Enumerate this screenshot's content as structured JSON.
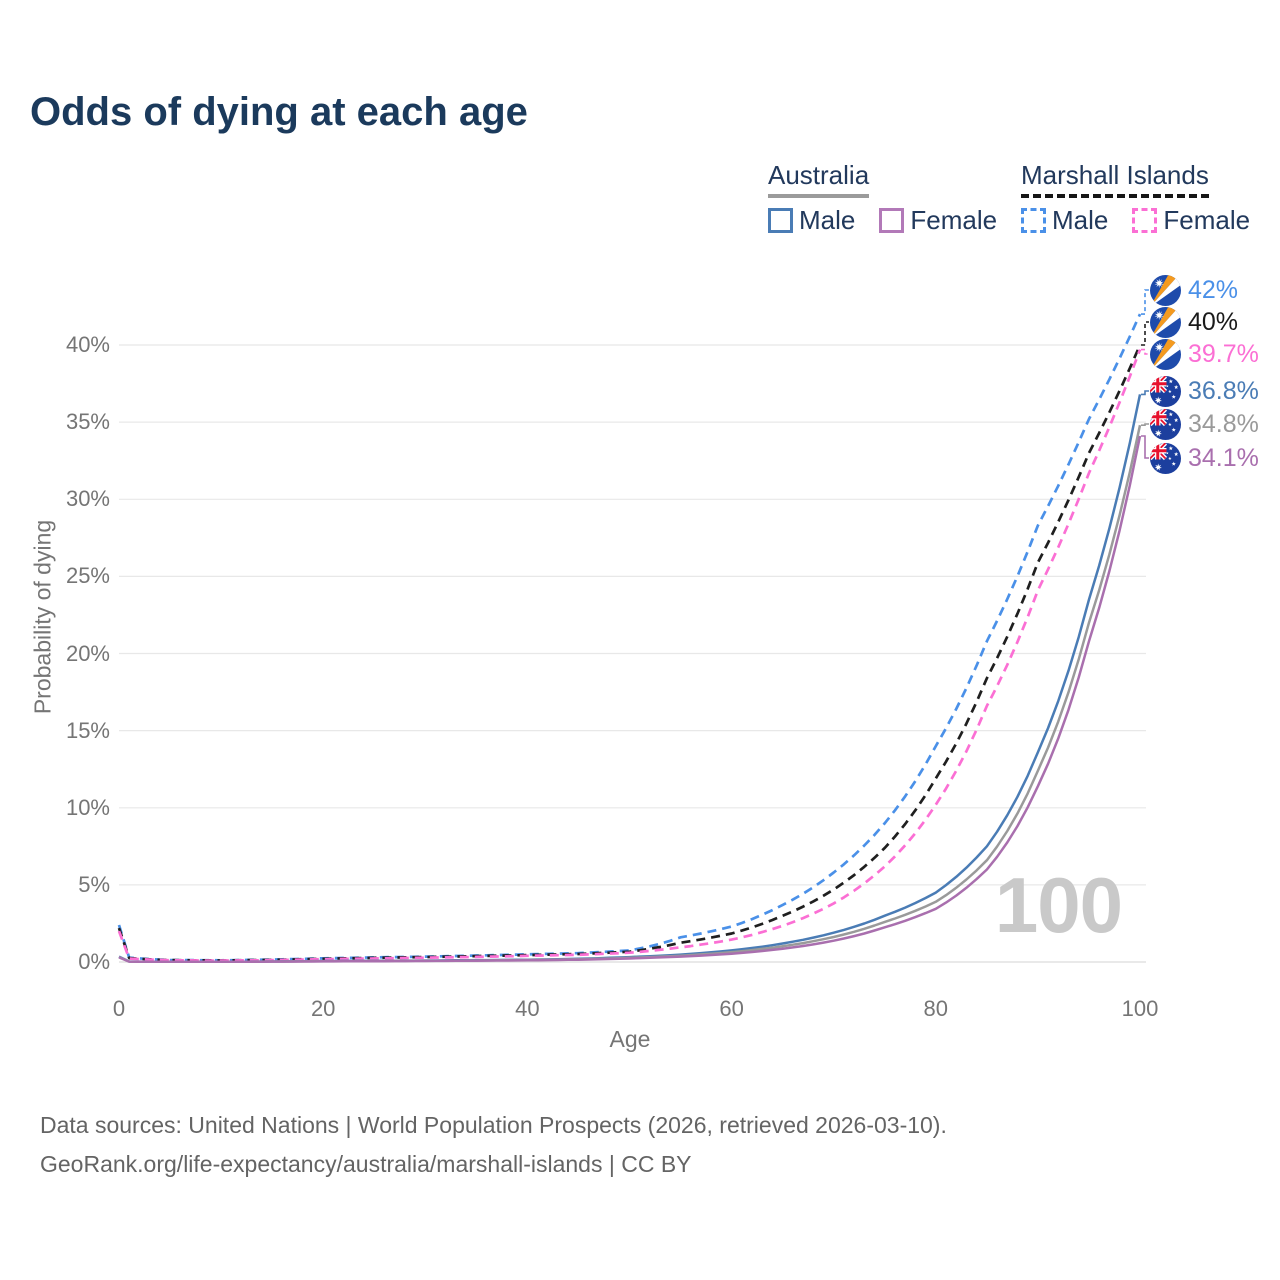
{
  "title": "Odds of dying at each age",
  "watermark": "100",
  "legend": {
    "groups": [
      {
        "label": "Australia",
        "line_style": "solid",
        "underline_color": "#9b9b9b",
        "items": [
          {
            "label": "Male",
            "color": "#4a7cb5",
            "dashed": false
          },
          {
            "label": "Female",
            "color": "#b279b8",
            "dashed": false
          }
        ]
      },
      {
        "label": "Marshall Islands",
        "line_style": "dashed",
        "underline_color": "#161616",
        "items": [
          {
            "label": "Male",
            "color": "#4a90e8",
            "dashed": true
          },
          {
            "label": "Female",
            "color": "#fb6fd4",
            "dashed": true
          }
        ]
      }
    ]
  },
  "footer": {
    "line1": "Data sources: United Nations | World Population Prospects (2026, retrieved 2026-03-10).",
    "line2": "GeoRank.org/life-expectancy/australia/marshall-islands | CC BY"
  },
  "chart_data": {
    "type": "line",
    "title": "Odds of dying at each age",
    "xlabel": "Age",
    "ylabel": "Probability of dying",
    "xlim": [
      0,
      100
    ],
    "ylim_percent": [
      0,
      43
    ],
    "x_ticks": [
      "0",
      "20",
      "40",
      "60",
      "80",
      "100"
    ],
    "y_ticks": [
      "0%",
      "5%",
      "10%",
      "15%",
      "20%",
      "25%",
      "30%",
      "35%",
      "40%"
    ],
    "y_tick_values": [
      0,
      5,
      10,
      15,
      20,
      25,
      30,
      35,
      40
    ],
    "grid": "horizontal",
    "legend_position": "top-right",
    "x": [
      0,
      1,
      5,
      10,
      15,
      20,
      25,
      30,
      35,
      40,
      45,
      50,
      55,
      60,
      65,
      70,
      75,
      80,
      85,
      90,
      95,
      100
    ],
    "series": [
      {
        "name": "Marshall Islands Male",
        "country": "Marshall Islands",
        "sex": "Male",
        "color": "#4a90e8",
        "dashed": true,
        "flag": "marshall-islands",
        "end_label": "42%",
        "values_percent": [
          2.4,
          0.28,
          0.13,
          0.11,
          0.16,
          0.24,
          0.3,
          0.35,
          0.42,
          0.5,
          0.58,
          0.75,
          1.6,
          2.3,
          3.7,
          5.8,
          9.0,
          14.0,
          20.8,
          28.3,
          35.2,
          42.0
        ]
      },
      {
        "name": "Marshall Islands Both Sexes",
        "country": "Marshall Islands",
        "sex": "Both",
        "color": "#1f1f1f",
        "dashed": true,
        "flag": "marshall-islands",
        "end_label": "40%",
        "values_percent": [
          2.2,
          0.25,
          0.12,
          0.1,
          0.14,
          0.21,
          0.27,
          0.32,
          0.38,
          0.45,
          0.52,
          0.67,
          1.25,
          1.85,
          3.0,
          4.7,
          7.4,
          11.9,
          18.4,
          25.9,
          33.0,
          40.0
        ]
      },
      {
        "name": "Marshall Islands Female",
        "country": "Marshall Islands",
        "sex": "Female",
        "color": "#fb6fd4",
        "dashed": true,
        "flag": "marshall-islands",
        "end_label": "39.7%",
        "values_percent": [
          2.0,
          0.22,
          0.11,
          0.09,
          0.12,
          0.18,
          0.23,
          0.28,
          0.33,
          0.4,
          0.47,
          0.6,
          0.95,
          1.45,
          2.35,
          3.8,
          6.2,
          10.2,
          16.6,
          24.1,
          31.7,
          39.7
        ]
      },
      {
        "name": "Australia Male",
        "country": "Australia",
        "sex": "Male",
        "color": "#4a7cb5",
        "dashed": false,
        "flag": "australia",
        "end_label": "36.8%",
        "values_percent": [
          0.35,
          0.03,
          0.012,
          0.012,
          0.035,
          0.065,
          0.08,
          0.095,
          0.12,
          0.15,
          0.21,
          0.32,
          0.48,
          0.75,
          1.2,
          1.9,
          3.0,
          4.5,
          7.5,
          13.6,
          23.5,
          36.8
        ]
      },
      {
        "name": "Australia Both Sexes",
        "country": "Australia",
        "sex": "Both",
        "color": "#9a9a9a",
        "dashed": false,
        "flag": "australia",
        "end_label": "34.8%",
        "values_percent": [
          0.32,
          0.028,
          0.011,
          0.011,
          0.03,
          0.05,
          0.065,
          0.08,
          0.1,
          0.13,
          0.18,
          0.27,
          0.41,
          0.64,
          1.02,
          1.62,
          2.6,
          3.9,
          6.6,
          12.4,
          22.0,
          34.8
        ]
      },
      {
        "name": "Australia Female",
        "country": "Australia",
        "sex": "Female",
        "color": "#a96fae",
        "dashed": false,
        "flag": "australia",
        "end_label": "34.1%",
        "values_percent": [
          0.3,
          0.026,
          0.01,
          0.01,
          0.024,
          0.038,
          0.05,
          0.065,
          0.085,
          0.11,
          0.15,
          0.23,
          0.35,
          0.54,
          0.86,
          1.38,
          2.25,
          3.45,
          6.0,
          11.4,
          20.8,
          34.1
        ]
      }
    ]
  }
}
